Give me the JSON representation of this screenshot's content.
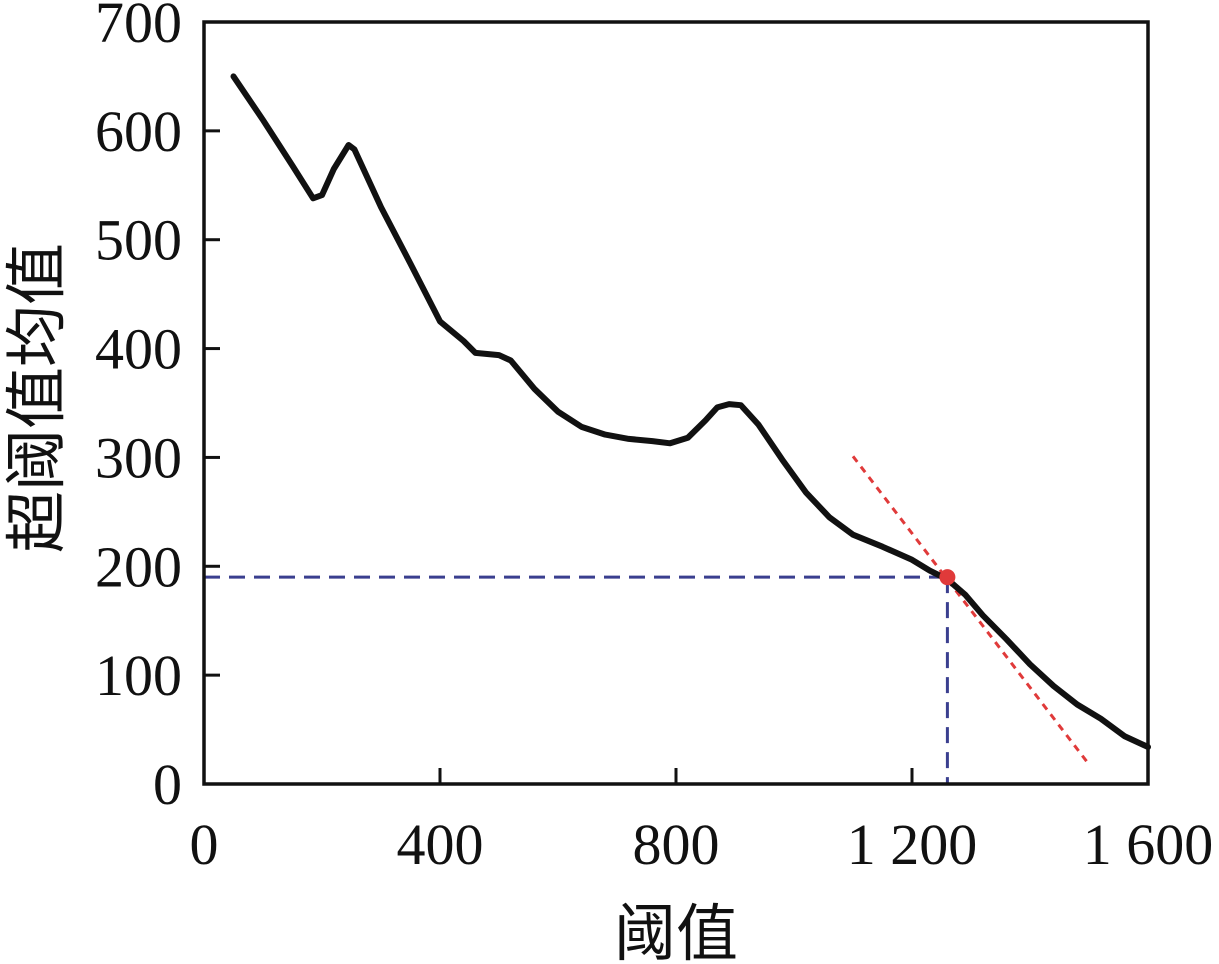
{
  "chart_data": {
    "type": "line",
    "title": "",
    "xlabel": "阈值",
    "ylabel": "超阈值均值",
    "xlim": [
      0,
      1600
    ],
    "ylim": [
      0,
      700
    ],
    "x_ticks": [
      0,
      400,
      800,
      1200,
      1600
    ],
    "x_tick_labels": [
      "0",
      "400",
      "800",
      "1 200",
      "1 600"
    ],
    "y_ticks": [
      0,
      100,
      200,
      300,
      400,
      500,
      600,
      700
    ],
    "y_tick_labels": [
      "0",
      "100",
      "200",
      "300",
      "400",
      "500",
      "600",
      "700"
    ],
    "grid": false,
    "series": [
      {
        "color": "#111111",
        "x": [
          50,
          100,
          150,
          185,
          200,
          220,
          245,
          255,
          300,
          350,
          400,
          440,
          460,
          480,
          500,
          520,
          560,
          600,
          640,
          680,
          720,
          760,
          790,
          820,
          850,
          870,
          890,
          910,
          940,
          980,
          1020,
          1060,
          1100,
          1150,
          1200,
          1230,
          1260,
          1290,
          1320,
          1360,
          1400,
          1440,
          1480,
          1520,
          1560,
          1600
        ],
        "y": [
          650,
          610,
          568,
          538,
          541,
          565,
          587,
          583,
          530,
          478,
          425,
          407,
          396,
          395,
          394,
          389,
          363,
          342,
          328,
          321,
          317,
          315,
          313,
          318,
          334,
          346,
          349,
          348,
          330,
          298,
          268,
          245,
          229,
          218,
          206,
          196,
          188,
          174,
          155,
          133,
          110,
          90,
          73,
          60,
          44,
          34
        ]
      }
    ],
    "annotations": {
      "tangent_line": {
        "color": "#e03a3a",
        "style": "dotted",
        "x": [
          1100,
          1500
        ],
        "y": [
          301,
          18
        ]
      },
      "threshold_point": {
        "color": "#e03a3a",
        "x": 1260,
        "y": 190
      },
      "reference_lines": {
        "color": "#3a3f8f",
        "style": "dashed",
        "x": 1260,
        "y": 190
      }
    }
  }
}
